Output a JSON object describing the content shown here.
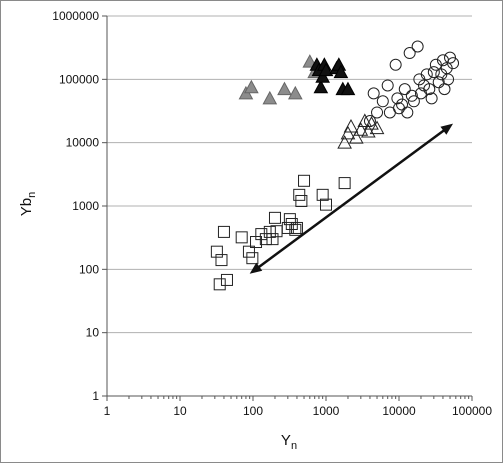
{
  "chart_data": {
    "type": "scatter",
    "x_scale": "log",
    "y_scale": "log",
    "xlim": [
      1,
      100000
    ],
    "ylim": [
      1,
      1000000
    ],
    "grid": "horizontal major gridlines",
    "xlabel": {
      "main": "Y",
      "sub": "n"
    },
    "ylabel": {
      "main": "Yb",
      "sub": "n"
    },
    "x_tick_labels": [
      "1",
      "10",
      "100",
      "1000",
      "10000",
      "100000"
    ],
    "y_tick_labels": [
      "1",
      "10",
      "100",
      "1000",
      "10000",
      "100000",
      "1000000"
    ],
    "x_ticks": [
      1,
      10,
      100,
      1000,
      10000,
      100000
    ],
    "y_ticks": [
      1,
      10,
      100,
      1000,
      10000,
      100000,
      1000000
    ],
    "colors": {
      "grey_fill": "#8c8c8c",
      "black_fill": "#111111",
      "open_edge": "#222222",
      "grid": "#b0b0b0"
    },
    "series": [
      {
        "marker": "open-square",
        "points": [
          [
            32,
            190
          ],
          [
            35,
            58
          ],
          [
            37,
            140
          ],
          [
            40,
            390
          ],
          [
            44,
            68
          ],
          [
            70,
            320
          ],
          [
            88,
            190
          ],
          [
            98,
            150
          ],
          [
            110,
            270
          ],
          [
            130,
            360
          ],
          [
            150,
            300
          ],
          [
            170,
            390
          ],
          [
            185,
            300
          ],
          [
            200,
            650
          ],
          [
            210,
            400
          ],
          [
            300,
            450
          ],
          [
            320,
            620
          ],
          [
            340,
            520
          ],
          [
            380,
            420
          ],
          [
            400,
            450
          ],
          [
            430,
            1500
          ],
          [
            460,
            1200
          ],
          [
            500,
            2500
          ],
          [
            900,
            1500
          ],
          [
            1000,
            1050
          ],
          [
            1800,
            2300
          ]
        ]
      },
      {
        "marker": "open-triangle",
        "points": [
          [
            1800,
            10000
          ],
          [
            2000,
            14000
          ],
          [
            2200,
            18000
          ],
          [
            2600,
            12000
          ],
          [
            3000,
            16000
          ],
          [
            3400,
            22000
          ],
          [
            3800,
            15000
          ],
          [
            4200,
            20000
          ],
          [
            5000,
            17000
          ]
        ]
      },
      {
        "marker": "open-circle",
        "points": [
          [
            4000,
            22000
          ],
          [
            4500,
            60000
          ],
          [
            5000,
            30000
          ],
          [
            6000,
            45000
          ],
          [
            7000,
            80000
          ],
          [
            7500,
            30000
          ],
          [
            9000,
            170000
          ],
          [
            9500,
            50000
          ],
          [
            10000,
            35000
          ],
          [
            11000,
            40000
          ],
          [
            12000,
            70000
          ],
          [
            13000,
            30000
          ],
          [
            14000,
            260000
          ],
          [
            15000,
            55000
          ],
          [
            16000,
            45000
          ],
          [
            18000,
            330000
          ],
          [
            19000,
            100000
          ],
          [
            20000,
            60000
          ],
          [
            22000,
            80000
          ],
          [
            24000,
            120000
          ],
          [
            26000,
            70000
          ],
          [
            28000,
            50000
          ],
          [
            30000,
            130000
          ],
          [
            32000,
            170000
          ],
          [
            35000,
            90000
          ],
          [
            38000,
            120000
          ],
          [
            40000,
            200000
          ],
          [
            42000,
            70000
          ],
          [
            45000,
            150000
          ],
          [
            47000,
            100000
          ],
          [
            50000,
            220000
          ],
          [
            55000,
            180000
          ]
        ]
      },
      {
        "marker": "filled-grey-triangle",
        "points": [
          [
            80,
            60000
          ],
          [
            95,
            75000
          ],
          [
            170,
            50000
          ],
          [
            270,
            70000
          ],
          [
            380,
            60000
          ],
          [
            600,
            190000
          ],
          [
            700,
            130000
          ]
        ]
      },
      {
        "marker": "filled-black-triangle",
        "points": [
          [
            750,
            170000
          ],
          [
            800,
            140000
          ],
          [
            850,
            75000
          ],
          [
            900,
            110000
          ],
          [
            950,
            170000
          ],
          [
            1000,
            140000
          ],
          [
            1400,
            150000
          ],
          [
            1500,
            170000
          ],
          [
            1600,
            130000
          ],
          [
            1700,
            70000
          ],
          [
            2000,
            70000
          ]
        ]
      }
    ],
    "annotations": [
      {
        "type": "double-arrow",
        "from": [
          90,
          85
        ],
        "to": [
          55000,
          20000
        ]
      }
    ]
  }
}
